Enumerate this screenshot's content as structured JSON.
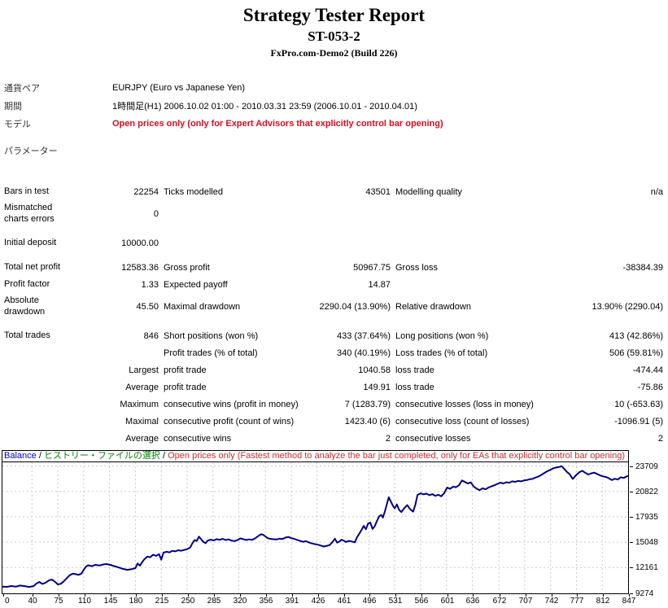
{
  "header": {
    "title": "Strategy Tester Report",
    "subtitle": "ST-053-2",
    "server": "FxPro.com-Demo2 (Build 226)"
  },
  "info": {
    "rows": [
      {
        "label": "通貨ペア",
        "value": "EURJPY (Euro vs Japanese Yen)",
        "style": "normal"
      },
      {
        "label": "期間",
        "value": "1時間足(H1) 2006.10.02 01:00 - 2010.03.31 23:59 (2006.10.01 - 2010.04.01)",
        "style": "normal"
      },
      {
        "label": "モデル",
        "value": "Open prices only (only for Expert Advisors that explicitly control bar opening)",
        "style": "model-red"
      },
      {
        "label": "パラメーター",
        "value": "",
        "style": "normal",
        "param": true
      }
    ]
  },
  "stats": {
    "rows": [
      {
        "cells": [
          "Bars in test",
          "22254",
          "Ticks modelled",
          "43501",
          "Modelling quality",
          "n/a"
        ]
      },
      {
        "cells": [
          "Mismatched\ncharts errors",
          "0",
          "",
          "",
          "",
          ""
        ],
        "tall": true
      },
      {
        "spacer": true
      },
      {
        "cells": [
          "Initial deposit",
          "10000.00",
          "",
          "",
          "",
          ""
        ]
      },
      {
        "spacer": true
      },
      {
        "cells": [
          "Total net profit",
          "12583.36",
          "Gross profit",
          "50967.75",
          "Gross loss",
          "-38384.39"
        ]
      },
      {
        "cells": [
          "Profit factor",
          "1.33",
          "Expected payoff",
          "14.87",
          "",
          ""
        ]
      },
      {
        "cells": [
          "Absolute\ndrawdown",
          "45.50",
          "Maximal drawdown",
          "2290.04 (13.90%)",
          "Relative drawdown",
          "13.90% (2290.04)"
        ],
        "tall": true
      },
      {
        "spacer": true
      },
      {
        "cells": [
          "Total trades",
          "846",
          "Short positions (won %)",
          "433 (37.64%)",
          "Long positions (won %)",
          "413 (42.86%)"
        ]
      },
      {
        "cells": [
          "",
          "",
          "Profit trades (% of total)",
          "340 (40.19%)",
          "Loss trades (% of total)",
          "506 (59.81%)"
        ]
      },
      {
        "cells": [
          "",
          "Largest",
          "profit trade",
          "1040.58",
          "loss trade",
          "-474.44"
        ]
      },
      {
        "cells": [
          "",
          "Average",
          "profit trade",
          "149.91",
          "loss trade",
          "-75.86"
        ]
      },
      {
        "cells": [
          "",
          "Maximum",
          "consecutive wins (profit in money)",
          "7 (1283.79)",
          "consecutive losses (loss in money)",
          "10 (-653.63)"
        ]
      },
      {
        "cells": [
          "",
          "Maximal",
          "consecutive profit (count of wins)",
          "1423.40 (6)",
          "consecutive loss (count of losses)",
          "-1096.91 (5)"
        ]
      },
      {
        "cells": [
          "",
          "Average",
          "consecutive wins",
          "2",
          "consecutive losses",
          "2"
        ]
      }
    ]
  },
  "chart_data": {
    "type": "line",
    "title": "Balance",
    "legend": {
      "balance_label": "Balance",
      "sep1": " / ",
      "history_label": "ヒストリー・ファイルの選択",
      "sep2": " / ",
      "model_label": "Open prices only (Fastest method to analyze the bar just completed, only for EAs that explicitly control bar opening)"
    },
    "x_ticks": [
      0,
      40,
      75,
      110,
      145,
      180,
      215,
      250,
      285,
      320,
      356,
      391,
      426,
      461,
      496,
      531,
      566,
      601,
      636,
      672,
      707,
      742,
      777,
      812,
      847
    ],
    "y_ticks": [
      23709,
      20822,
      17935,
      15048,
      12161,
      9274
    ],
    "x_range": [
      0,
      847
    ],
    "y_range": [
      9274,
      23709
    ],
    "grid": true,
    "line_color": "#000080",
    "grid_color": "#c9c9c9",
    "series": [
      {
        "name": "Balance",
        "points": [
          [
            0,
            10000
          ],
          [
            6,
            9970
          ],
          [
            12,
            10060
          ],
          [
            18,
            9990
          ],
          [
            24,
            10120
          ],
          [
            30,
            10050
          ],
          [
            36,
            9960
          ],
          [
            42,
            10030
          ],
          [
            46,
            10350
          ],
          [
            50,
            10520
          ],
          [
            54,
            10300
          ],
          [
            58,
            10420
          ],
          [
            63,
            10700
          ],
          [
            67,
            10790
          ],
          [
            71,
            10550
          ],
          [
            75,
            10250
          ],
          [
            79,
            10310
          ],
          [
            83,
            10600
          ],
          [
            87,
            10950
          ],
          [
            91,
            11280
          ],
          [
            95,
            11460
          ],
          [
            99,
            11410
          ],
          [
            103,
            11330
          ],
          [
            107,
            11480
          ],
          [
            110,
            11900
          ],
          [
            113,
            12250
          ],
          [
            116,
            12420
          ],
          [
            121,
            12320
          ],
          [
            126,
            12480
          ],
          [
            131,
            12390
          ],
          [
            136,
            12500
          ],
          [
            141,
            12560
          ],
          [
            146,
            12470
          ],
          [
            151,
            12330
          ],
          [
            157,
            12180
          ],
          [
            163,
            12010
          ],
          [
            169,
            11900
          ],
          [
            175,
            11980
          ],
          [
            180,
            12100
          ],
          [
            183,
            12620
          ],
          [
            186,
            12380
          ],
          [
            189,
            12750
          ],
          [
            192,
            13100
          ],
          [
            196,
            13400
          ],
          [
            200,
            13340
          ],
          [
            204,
            13620
          ],
          [
            208,
            13480
          ],
          [
            212,
            13680
          ],
          [
            215,
            13060
          ],
          [
            218,
            13850
          ],
          [
            222,
            13960
          ],
          [
            226,
            13880
          ],
          [
            230,
            14060
          ],
          [
            234,
            14000
          ],
          [
            238,
            14130
          ],
          [
            242,
            14070
          ],
          [
            246,
            14170
          ],
          [
            250,
            14240
          ],
          [
            254,
            14420
          ],
          [
            257,
            14900
          ],
          [
            260,
            15280
          ],
          [
            263,
            15180
          ],
          [
            266,
            15680
          ],
          [
            269,
            15380
          ],
          [
            272,
            15080
          ],
          [
            275,
            14930
          ],
          [
            278,
            15230
          ],
          [
            282,
            15330
          ],
          [
            286,
            15250
          ],
          [
            290,
            15390
          ],
          [
            294,
            15310
          ],
          [
            298,
            15430
          ],
          [
            302,
            15290
          ],
          [
            306,
            15360
          ],
          [
            310,
            15230
          ],
          [
            314,
            15170
          ],
          [
            318,
            15280
          ],
          [
            322,
            15470
          ],
          [
            326,
            15390
          ],
          [
            330,
            15290
          ],
          [
            334,
            15360
          ],
          [
            338,
            15310
          ],
          [
            342,
            15470
          ],
          [
            346,
            15720
          ],
          [
            350,
            15950
          ],
          [
            353,
            15880
          ],
          [
            356,
            15700
          ],
          [
            359,
            15500
          ],
          [
            363,
            15420
          ],
          [
            367,
            15380
          ],
          [
            371,
            15350
          ],
          [
            375,
            15450
          ],
          [
            379,
            15400
          ],
          [
            383,
            15570
          ],
          [
            387,
            15640
          ],
          [
            391,
            15500
          ],
          [
            395,
            15430
          ],
          [
            399,
            15300
          ],
          [
            403,
            15190
          ],
          [
            407,
            15090
          ],
          [
            411,
            15160
          ],
          [
            415,
            15010
          ],
          [
            419,
            14900
          ],
          [
            423,
            14830
          ],
          [
            427,
            14760
          ],
          [
            431,
            14660
          ],
          [
            435,
            14550
          ],
          [
            439,
            14630
          ],
          [
            443,
            14720
          ],
          [
            447,
            15080
          ],
          [
            450,
            15450
          ],
          [
            453,
            14990
          ],
          [
            456,
            15110
          ],
          [
            459,
            15330
          ],
          [
            462,
            15210
          ],
          [
            465,
            15070
          ],
          [
            469,
            15190
          ],
          [
            473,
            15120
          ],
          [
            477,
            15030
          ],
          [
            480,
            15610
          ],
          [
            483,
            15990
          ],
          [
            486,
            16420
          ],
          [
            489,
            16900
          ],
          [
            492,
            16520
          ],
          [
            495,
            17160
          ],
          [
            498,
            17280
          ],
          [
            501,
            16550
          ],
          [
            504,
            16870
          ],
          [
            507,
            17460
          ],
          [
            510,
            17990
          ],
          [
            513,
            18130
          ],
          [
            515,
            17840
          ],
          [
            518,
            18620
          ],
          [
            520,
            19250
          ],
          [
            523,
            20150
          ],
          [
            526,
            19620
          ],
          [
            529,
            19120
          ],
          [
            531,
            18890
          ],
          [
            534,
            19340
          ],
          [
            537,
            18720
          ],
          [
            540,
            18470
          ],
          [
            544,
            18920
          ],
          [
            548,
            19260
          ],
          [
            552,
            18780
          ],
          [
            556,
            18520
          ],
          [
            559,
            19320
          ],
          [
            562,
            20420
          ],
          [
            566,
            20600
          ],
          [
            570,
            20480
          ],
          [
            574,
            20560
          ],
          [
            578,
            20390
          ],
          [
            582,
            20510
          ],
          [
            586,
            20310
          ],
          [
            590,
            20430
          ],
          [
            594,
            20260
          ],
          [
            598,
            20620
          ],
          [
            602,
            21260
          ],
          [
            606,
            21110
          ],
          [
            610,
            21360
          ],
          [
            614,
            21290
          ],
          [
            618,
            21520
          ],
          [
            622,
            22060
          ],
          [
            626,
            21890
          ],
          [
            630,
            21720
          ],
          [
            634,
            21840
          ],
          [
            638,
            21380
          ],
          [
            642,
            21120
          ],
          [
            646,
            20960
          ],
          [
            650,
            21160
          ],
          [
            654,
            21060
          ],
          [
            658,
            21260
          ],
          [
            662,
            21400
          ],
          [
            666,
            21520
          ],
          [
            670,
            21660
          ],
          [
            674,
            21820
          ],
          [
            678,
            21720
          ],
          [
            682,
            21860
          ],
          [
            686,
            21800
          ],
          [
            690,
            21960
          ],
          [
            694,
            21900
          ],
          [
            698,
            22010
          ],
          [
            702,
            21960
          ],
          [
            706,
            22060
          ],
          [
            710,
            22110
          ],
          [
            714,
            22210
          ],
          [
            718,
            22260
          ],
          [
            722,
            22400
          ],
          [
            726,
            22520
          ],
          [
            730,
            22720
          ],
          [
            734,
            22930
          ],
          [
            738,
            23130
          ],
          [
            742,
            23280
          ],
          [
            746,
            23460
          ],
          [
            750,
            23530
          ],
          [
            754,
            23600
          ],
          [
            757,
            23690
          ],
          [
            760,
            23420
          ],
          [
            764,
            23050
          ],
          [
            768,
            22760
          ],
          [
            772,
            22230
          ],
          [
            776,
            22620
          ],
          [
            781,
            23010
          ],
          [
            785,
            23160
          ],
          [
            789,
            22930
          ],
          [
            793,
            22740
          ],
          [
            797,
            22870
          ],
          [
            801,
            22950
          ],
          [
            805,
            22800
          ],
          [
            809,
            22640
          ],
          [
            813,
            22520
          ],
          [
            817,
            22460
          ],
          [
            821,
            22300
          ],
          [
            825,
            22110
          ],
          [
            829,
            22260
          ],
          [
            833,
            22160
          ],
          [
            837,
            22420
          ],
          [
            841,
            22350
          ],
          [
            844,
            22480
          ],
          [
            847,
            22583
          ]
        ]
      }
    ]
  }
}
